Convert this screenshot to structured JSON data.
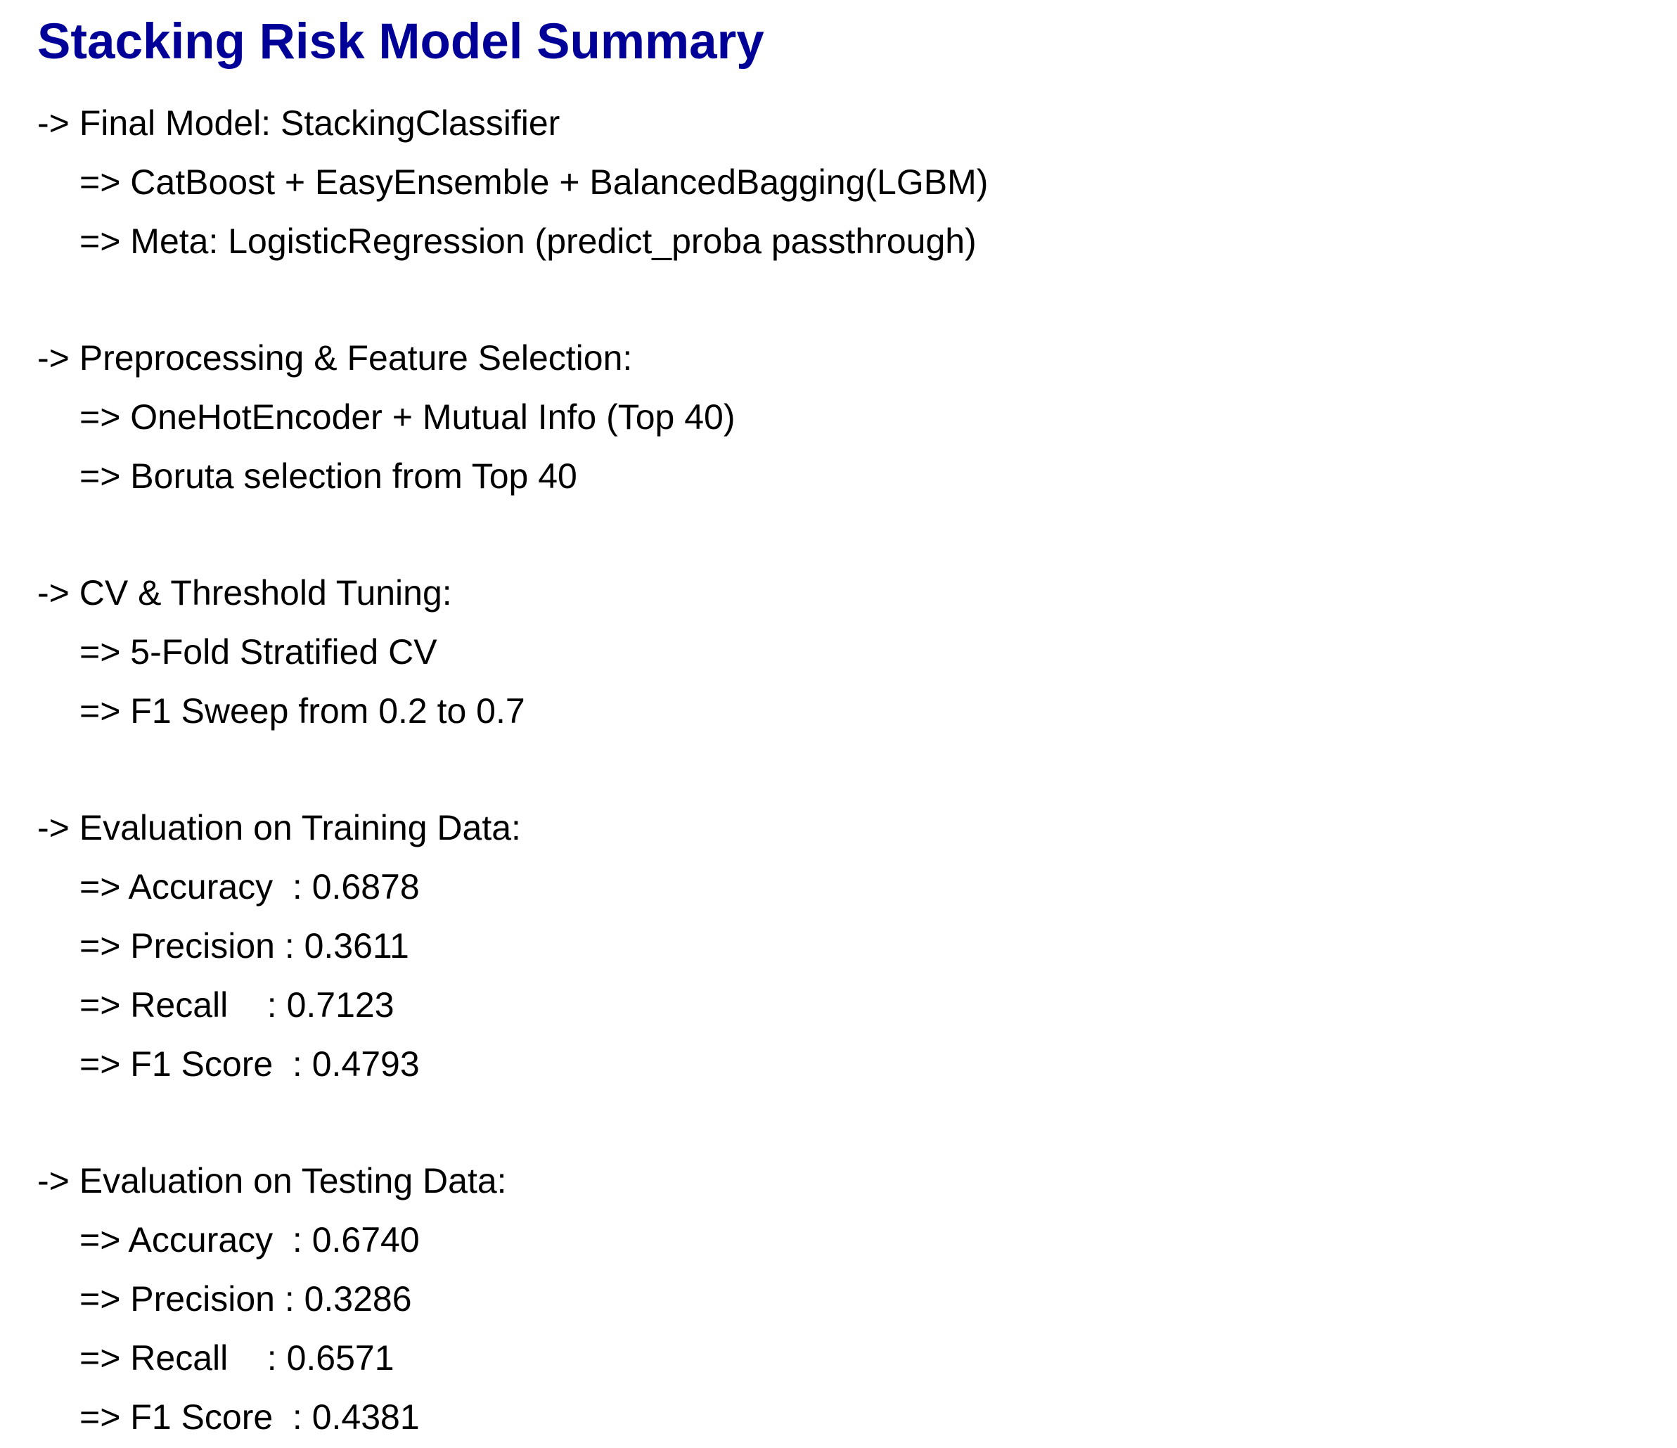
{
  "colors": {
    "title": "#000099",
    "text": "#000000",
    "background": "#ffffff"
  },
  "title": "Stacking Risk Model Summary",
  "sections": [
    {
      "heading": "-> Final Model: StackingClassifier",
      "items": [
        "=> CatBoost + EasyEnsemble + BalancedBagging(LGBM)",
        "=> Meta: LogisticRegression (predict_proba passthrough)"
      ]
    },
    {
      "heading": "-> Preprocessing & Feature Selection:",
      "items": [
        "=> OneHotEncoder + Mutual Info (Top 40)",
        "=> Boruta selection from Top 40"
      ]
    },
    {
      "heading": "-> CV & Threshold Tuning:",
      "items": [
        "=> 5-Fold Stratified CV",
        "=> F1 Sweep from 0.2 to 0.7"
      ]
    },
    {
      "heading": "-> Evaluation on Training Data:",
      "items": [
        "=> Accuracy  : 0.6878",
        "=> Precision : 0.3611",
        "=> Recall    : 0.7123",
        "=> F1 Score  : 0.4793"
      ]
    },
    {
      "heading": "-> Evaluation on Testing Data:",
      "items": [
        "=> Accuracy  : 0.6740",
        "=> Precision : 0.3286",
        "=> Recall    : 0.6571",
        "=> F1 Score  : 0.4381"
      ]
    }
  ]
}
